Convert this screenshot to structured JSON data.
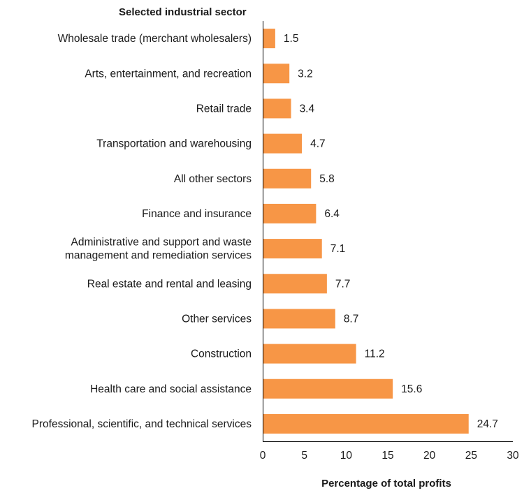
{
  "chart_data": {
    "type": "bar",
    "orientation": "horizontal",
    "title": "Selected industrial sector",
    "xlabel": "Percentage of total profits",
    "ylabel": "",
    "xlim": [
      0,
      30
    ],
    "x_ticks": [
      "0",
      "5",
      "10",
      "15",
      "20",
      "25",
      "30"
    ],
    "grid": false,
    "legend": "none",
    "bar_color": "#F79646",
    "categories": [
      [
        "Wholesale trade (merchant wholesalers)"
      ],
      [
        "Arts, entertainment, and recreation"
      ],
      [
        "Retail trade"
      ],
      [
        "Transportation and warehousing"
      ],
      [
        "All other sectors"
      ],
      [
        "Finance and insurance"
      ],
      [
        "Administrative and support and waste",
        "management and remediation services"
      ],
      [
        "Real estate and rental and leasing"
      ],
      [
        "Other services"
      ],
      [
        "Construction"
      ],
      [
        "Health care and social assistance"
      ],
      [
        "Professional, scientific, and technical services"
      ]
    ],
    "values": [
      1.5,
      3.2,
      3.4,
      4.7,
      5.8,
      6.4,
      7.1,
      7.7,
      8.7,
      11.2,
      15.6,
      24.7
    ],
    "value_labels": [
      "1.5",
      "3.2",
      "3.4",
      "4.7",
      "5.8",
      "6.4",
      "7.1",
      "7.7",
      "8.7",
      "11.2",
      "15.6",
      "24.7"
    ]
  }
}
